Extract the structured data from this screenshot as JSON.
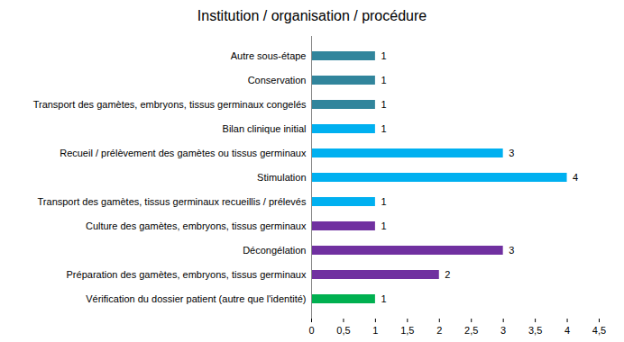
{
  "chart_data": {
    "type": "bar",
    "orientation": "horizontal",
    "title": "Institution / organisation / procédure",
    "categories": [
      "Autre sous-étape",
      "Conservation",
      "Transport des gamètes, embryons, tissus germinaux congelés",
      "Bilan clinique initial",
      "Recueil / prélèvement des gamètes ou tissus germinaux",
      "Stimulation",
      "Transport des gamètes, tissus germinaux recueillis / prélevés",
      "Culture des gamètes, embryons, tissus germinaux",
      "Décongélation",
      "Préparation des gamètes, embryons, tissus germinaux",
      "Vérification du dossier patient (autre que l'identité)"
    ],
    "values": [
      1,
      1,
      1,
      1,
      3,
      4,
      1,
      1,
      3,
      2,
      1
    ],
    "colors": [
      "#31859c",
      "#31859c",
      "#31859c",
      "#00b0f0",
      "#00b0f0",
      "#00b0f0",
      "#00b0f0",
      "#7030a0",
      "#7030a0",
      "#7030a0",
      "#00b050"
    ],
    "xlim": [
      0,
      4.5
    ],
    "xticks": [
      0,
      {
        "value": 0.5,
        "label": "0,5"
      },
      1,
      {
        "value": 1.5,
        "label": "1,5"
      },
      2,
      {
        "value": 2.5,
        "label": "2,5"
      },
      3,
      {
        "value": 3.5,
        "label": "3,5"
      },
      4,
      {
        "value": 4.5,
        "label": "4,5"
      }
    ],
    "grid": false,
    "data_labels": true
  }
}
